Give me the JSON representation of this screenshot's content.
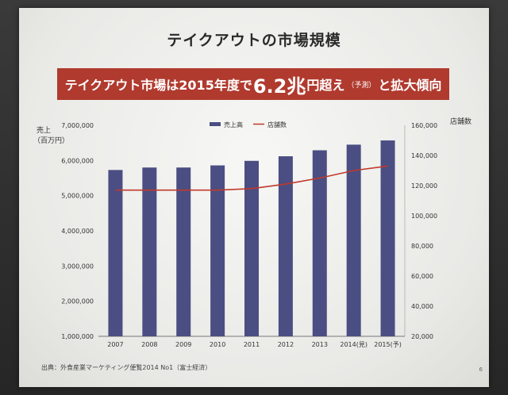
{
  "slide": {
    "title": "テイクアウトの市場規模",
    "banner": {
      "part1": "テイクアウト市場は2015年度で",
      "highlight": "6.2兆",
      "part2": "円超え",
      "note": "（予測）",
      "part3": "と拡大傾向"
    },
    "source": "出典：外食産業マーケティング便覧2014 No1（富士経済）",
    "page_number": "6"
  },
  "chart_data": {
    "type": "bar",
    "categories": [
      "2007",
      "2008",
      "2009",
      "2010",
      "2011",
      "2012",
      "2013",
      "2014(見)",
      "2015(予)"
    ],
    "series": [
      {
        "name": "売上高",
        "type": "bar",
        "axis": "left",
        "color": "#4a4e82",
        "values": [
          5730000,
          5800000,
          5800000,
          5860000,
          5990000,
          6120000,
          6290000,
          6450000,
          6570000
        ]
      },
      {
        "name": "店舗数",
        "type": "line",
        "axis": "right",
        "color": "#c0392b",
        "values": [
          117000,
          117000,
          117000,
          117000,
          118000,
          121000,
          125000,
          130000,
          133000
        ]
      }
    ],
    "y_left": {
      "label_line1": "売上",
      "label_line2": "（百万円）",
      "min": 1000000,
      "max": 7000000,
      "ticks": [
        "1,000,000",
        "2,000,000",
        "3,000,000",
        "4,000,000",
        "5,000,000",
        "6,000,000",
        "7,000,000"
      ]
    },
    "y_right": {
      "label": "店舗数",
      "min": 20000,
      "max": 160000,
      "ticks": [
        "20,000",
        "40,000",
        "60,000",
        "80,000",
        "100,000",
        "120,000",
        "140,000",
        "160,000"
      ]
    },
    "legend": {
      "placement": "top-center"
    },
    "grid": false
  }
}
